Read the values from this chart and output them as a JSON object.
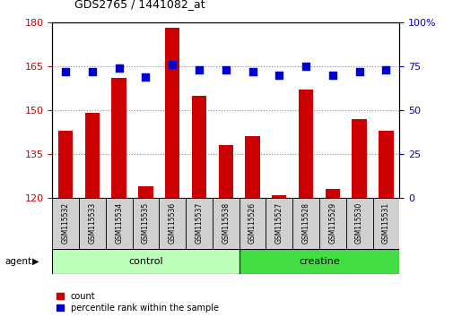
{
  "title": "GDS2765 / 1441082_at",
  "samples": [
    "GSM115532",
    "GSM115533",
    "GSM115534",
    "GSM115535",
    "GSM115536",
    "GSM115537",
    "GSM115538",
    "GSM115526",
    "GSM115527",
    "GSM115528",
    "GSM115529",
    "GSM115530",
    "GSM115531"
  ],
  "counts": [
    143,
    149,
    161,
    124,
    178,
    155,
    138,
    141,
    121,
    157,
    123,
    147,
    143
  ],
  "percentile_ranks": [
    72,
    72,
    74,
    69,
    76,
    73,
    73,
    72,
    70,
    75,
    70,
    72,
    73
  ],
  "bar_color": "#cc0000",
  "dot_color": "#0000cc",
  "ylim_left": [
    120,
    180
  ],
  "ylim_right": [
    0,
    100
  ],
  "yticks_left": [
    120,
    135,
    150,
    165,
    180
  ],
  "yticks_right": [
    0,
    25,
    50,
    75,
    100
  ],
  "control_count": 7,
  "creatine_count": 6,
  "control_color": "#bbffbb",
  "creatine_color": "#44dd44",
  "agent_label": "agent",
  "control_label": "control",
  "creatine_label": "creatine",
  "legend_count_label": "count",
  "legend_pct_label": "percentile rank within the sample",
  "bar_width": 0.55,
  "dot_size": 40,
  "grid_color": "#888888",
  "tick_label_color_left": "#cc0000",
  "tick_label_color_right": "#0000cc",
  "right_top_label": "100%"
}
